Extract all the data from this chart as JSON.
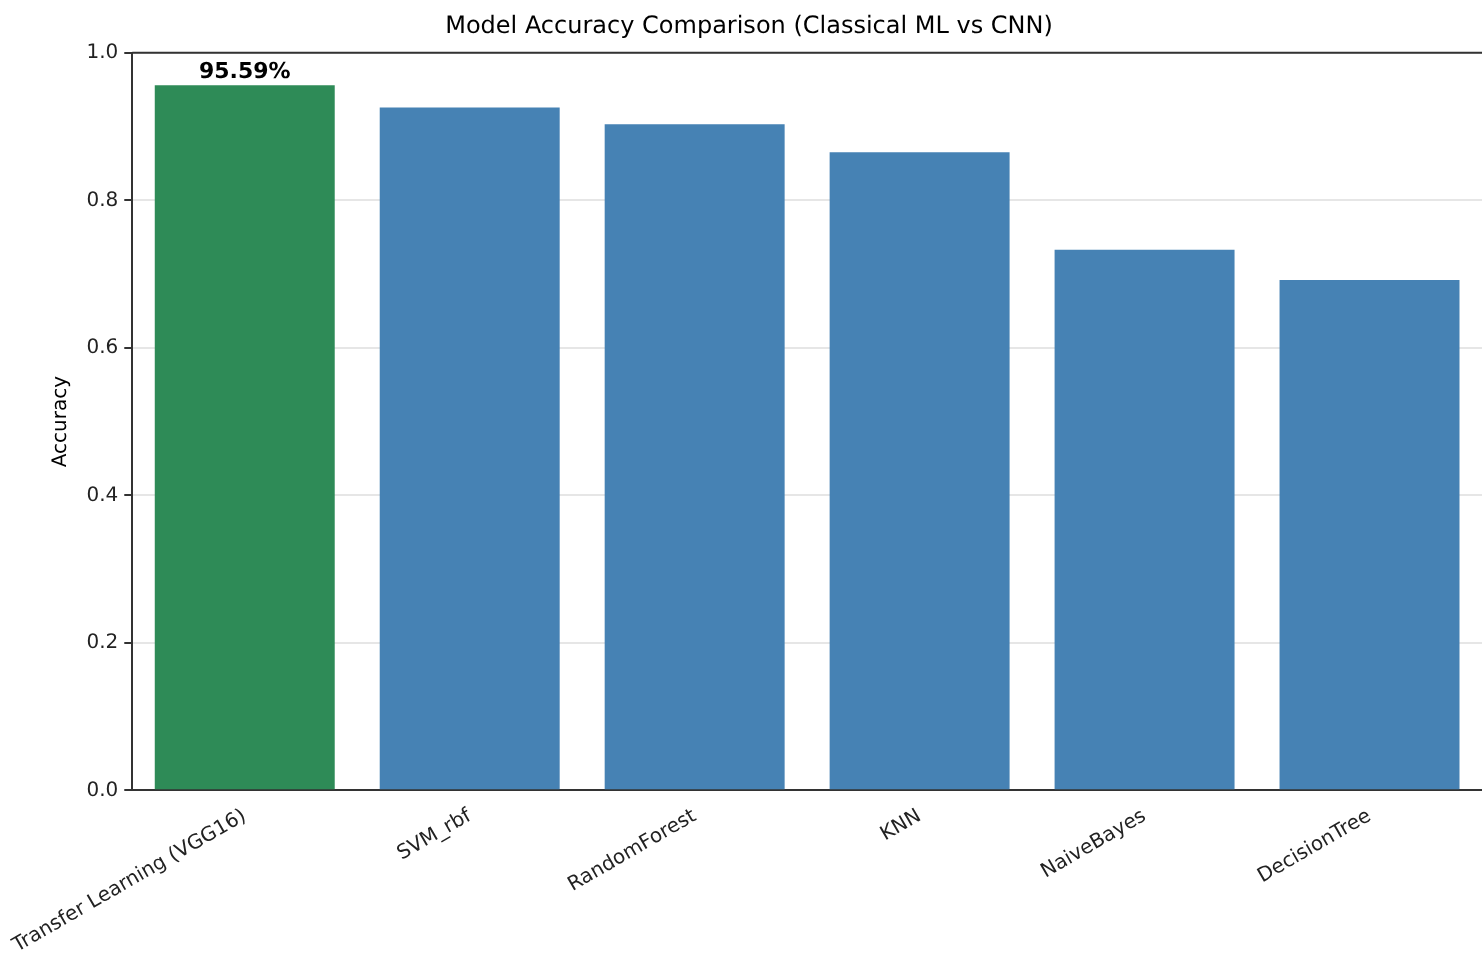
{
  "chart_data": {
    "type": "bar",
    "title": "Model Accuracy Comparison (Classical ML vs CNN)",
    "ylabel": "Accuracy",
    "categories": [
      "Transfer Learning (VGG16)",
      "SVM_rbf",
      "RandomForest",
      "KNN",
      "NaiveBayes",
      "DecisionTree"
    ],
    "values": [
      0.9559,
      0.926,
      0.903,
      0.865,
      0.733,
      0.692
    ],
    "colors": [
      "#2e8b57",
      "#4682b4",
      "#4682b4",
      "#4682b4",
      "#4682b4",
      "#4682b4"
    ],
    "value_labels": [
      "95.59%",
      null,
      null,
      null,
      null,
      null
    ],
    "ylim": [
      0,
      1
    ],
    "yticks": [
      {
        "value": 0,
        "label": "0.0"
      },
      {
        "value": 0.2,
        "label": "0.2"
      },
      {
        "value": 0.4,
        "label": "0.4"
      },
      {
        "value": 0.6,
        "label": "0.6"
      },
      {
        "value": 0.8,
        "label": "0.8"
      },
      {
        "value": 1,
        "label": "1.0"
      }
    ],
    "grid": "y",
    "legend": false
  }
}
